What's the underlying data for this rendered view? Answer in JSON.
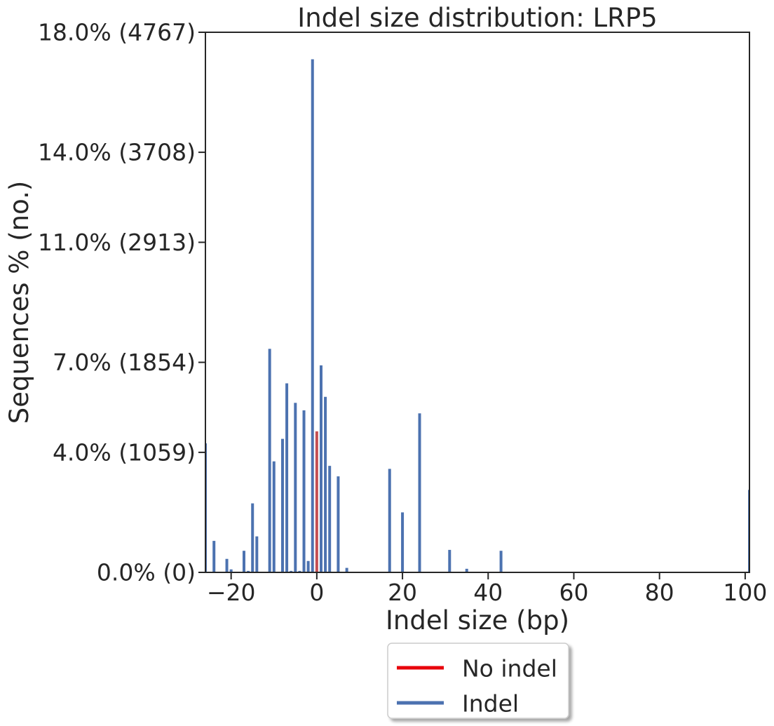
{
  "chart_data": {
    "type": "bar",
    "title": "Indel size distribution: LRP5",
    "xlabel": "Indel size (bp)",
    "ylabel": "Sequences % (no.)",
    "xlim": [
      -26,
      101
    ],
    "ylim": [
      0,
      18
    ],
    "x_ticks": [
      {
        "value": -20,
        "label": "−20"
      },
      {
        "value": 0,
        "label": "0"
      },
      {
        "value": 20,
        "label": "20"
      },
      {
        "value": 40,
        "label": "40"
      },
      {
        "value": 60,
        "label": "60"
      },
      {
        "value": 80,
        "label": "80"
      },
      {
        "value": 100,
        "label": "100"
      }
    ],
    "y_ticks": [
      {
        "value": 0,
        "label": "0.0% (0)"
      },
      {
        "value": 4,
        "label": "4.0% (1059)"
      },
      {
        "value": 7,
        "label": "7.0% (1854)"
      },
      {
        "value": 11,
        "label": "11.0% (2913)"
      },
      {
        "value": 14,
        "label": "14.0% (3708)"
      },
      {
        "value": 18,
        "label": "18.0% (4767)"
      }
    ],
    "series": [
      {
        "name": "No indel",
        "color": "#c44e52",
        "points": [
          {
            "x": 0,
            "y": 4.7
          }
        ]
      },
      {
        "name": "Indel",
        "color": "#4c72b0",
        "points": [
          {
            "x": -26,
            "y": 4.3
          },
          {
            "x": -24,
            "y": 1.05
          },
          {
            "x": -21,
            "y": 0.45
          },
          {
            "x": -20,
            "y": 0.1
          },
          {
            "x": -17,
            "y": 0.72
          },
          {
            "x": -16,
            "y": 0.05
          },
          {
            "x": -15,
            "y": 2.3
          },
          {
            "x": -14,
            "y": 1.2
          },
          {
            "x": -11,
            "y": 7.45
          },
          {
            "x": -10,
            "y": 3.7
          },
          {
            "x": -8,
            "y": 4.45
          },
          {
            "x": -7,
            "y": 6.3
          },
          {
            "x": -6,
            "y": 0.05
          },
          {
            "x": -5,
            "y": 5.65
          },
          {
            "x": -4,
            "y": 0.05
          },
          {
            "x": -3,
            "y": 5.4
          },
          {
            "x": -2,
            "y": 0.38
          },
          {
            "x": -1,
            "y": 17.1
          },
          {
            "x": 1,
            "y": 6.9
          },
          {
            "x": 2,
            "y": 5.85
          },
          {
            "x": 3,
            "y": 3.55
          },
          {
            "x": 5,
            "y": 3.2
          },
          {
            "x": 7,
            "y": 0.15
          },
          {
            "x": 17,
            "y": 3.45
          },
          {
            "x": 20,
            "y": 2.0
          },
          {
            "x": 24,
            "y": 5.3
          },
          {
            "x": 31,
            "y": 0.75
          },
          {
            "x": 35,
            "y": 0.12
          },
          {
            "x": 43,
            "y": 0.72
          },
          {
            "x": 101,
            "y": 2.75
          }
        ]
      }
    ],
    "legend": {
      "placement": "below-center",
      "entries": [
        {
          "label": "No indel",
          "color": "#e8000b"
        },
        {
          "label": "Indel",
          "color": "#4c72b0"
        }
      ]
    },
    "grid": false
  }
}
